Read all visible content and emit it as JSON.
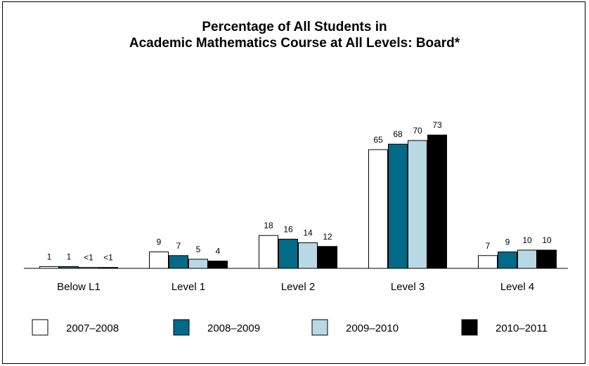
{
  "chart_data": {
    "type": "bar",
    "title_line1": "Percentage of All Students in",
    "title_line2": "Academic Mathematics Course at All Levels: Board*",
    "categories": [
      "Below L1",
      "Level 1",
      "Level 2",
      "Level 3",
      "Level 4"
    ],
    "series": [
      {
        "name": "2007–2008",
        "color": "#ffffff",
        "values": [
          1,
          9,
          18,
          65,
          7
        ],
        "labels": [
          "1",
          "9",
          "18",
          "65",
          "7"
        ]
      },
      {
        "name": "2008–2009",
        "color": "#006a87",
        "values": [
          1,
          7,
          16,
          68,
          9
        ],
        "labels": [
          "1",
          "7",
          "16",
          "68",
          "9"
        ]
      },
      {
        "name": "2009–2010",
        "color": "#b8d8e4",
        "values": [
          0.5,
          5,
          14,
          70,
          10
        ],
        "labels": [
          "<1",
          "5",
          "14",
          "70",
          "10"
        ]
      },
      {
        "name": "2010–2011",
        "color": "#000000",
        "values": [
          0.5,
          4,
          12,
          73,
          10
        ],
        "labels": [
          "<1",
          "4",
          "12",
          "73",
          "10"
        ]
      }
    ],
    "legend_position": "bottom",
    "grid": false
  }
}
